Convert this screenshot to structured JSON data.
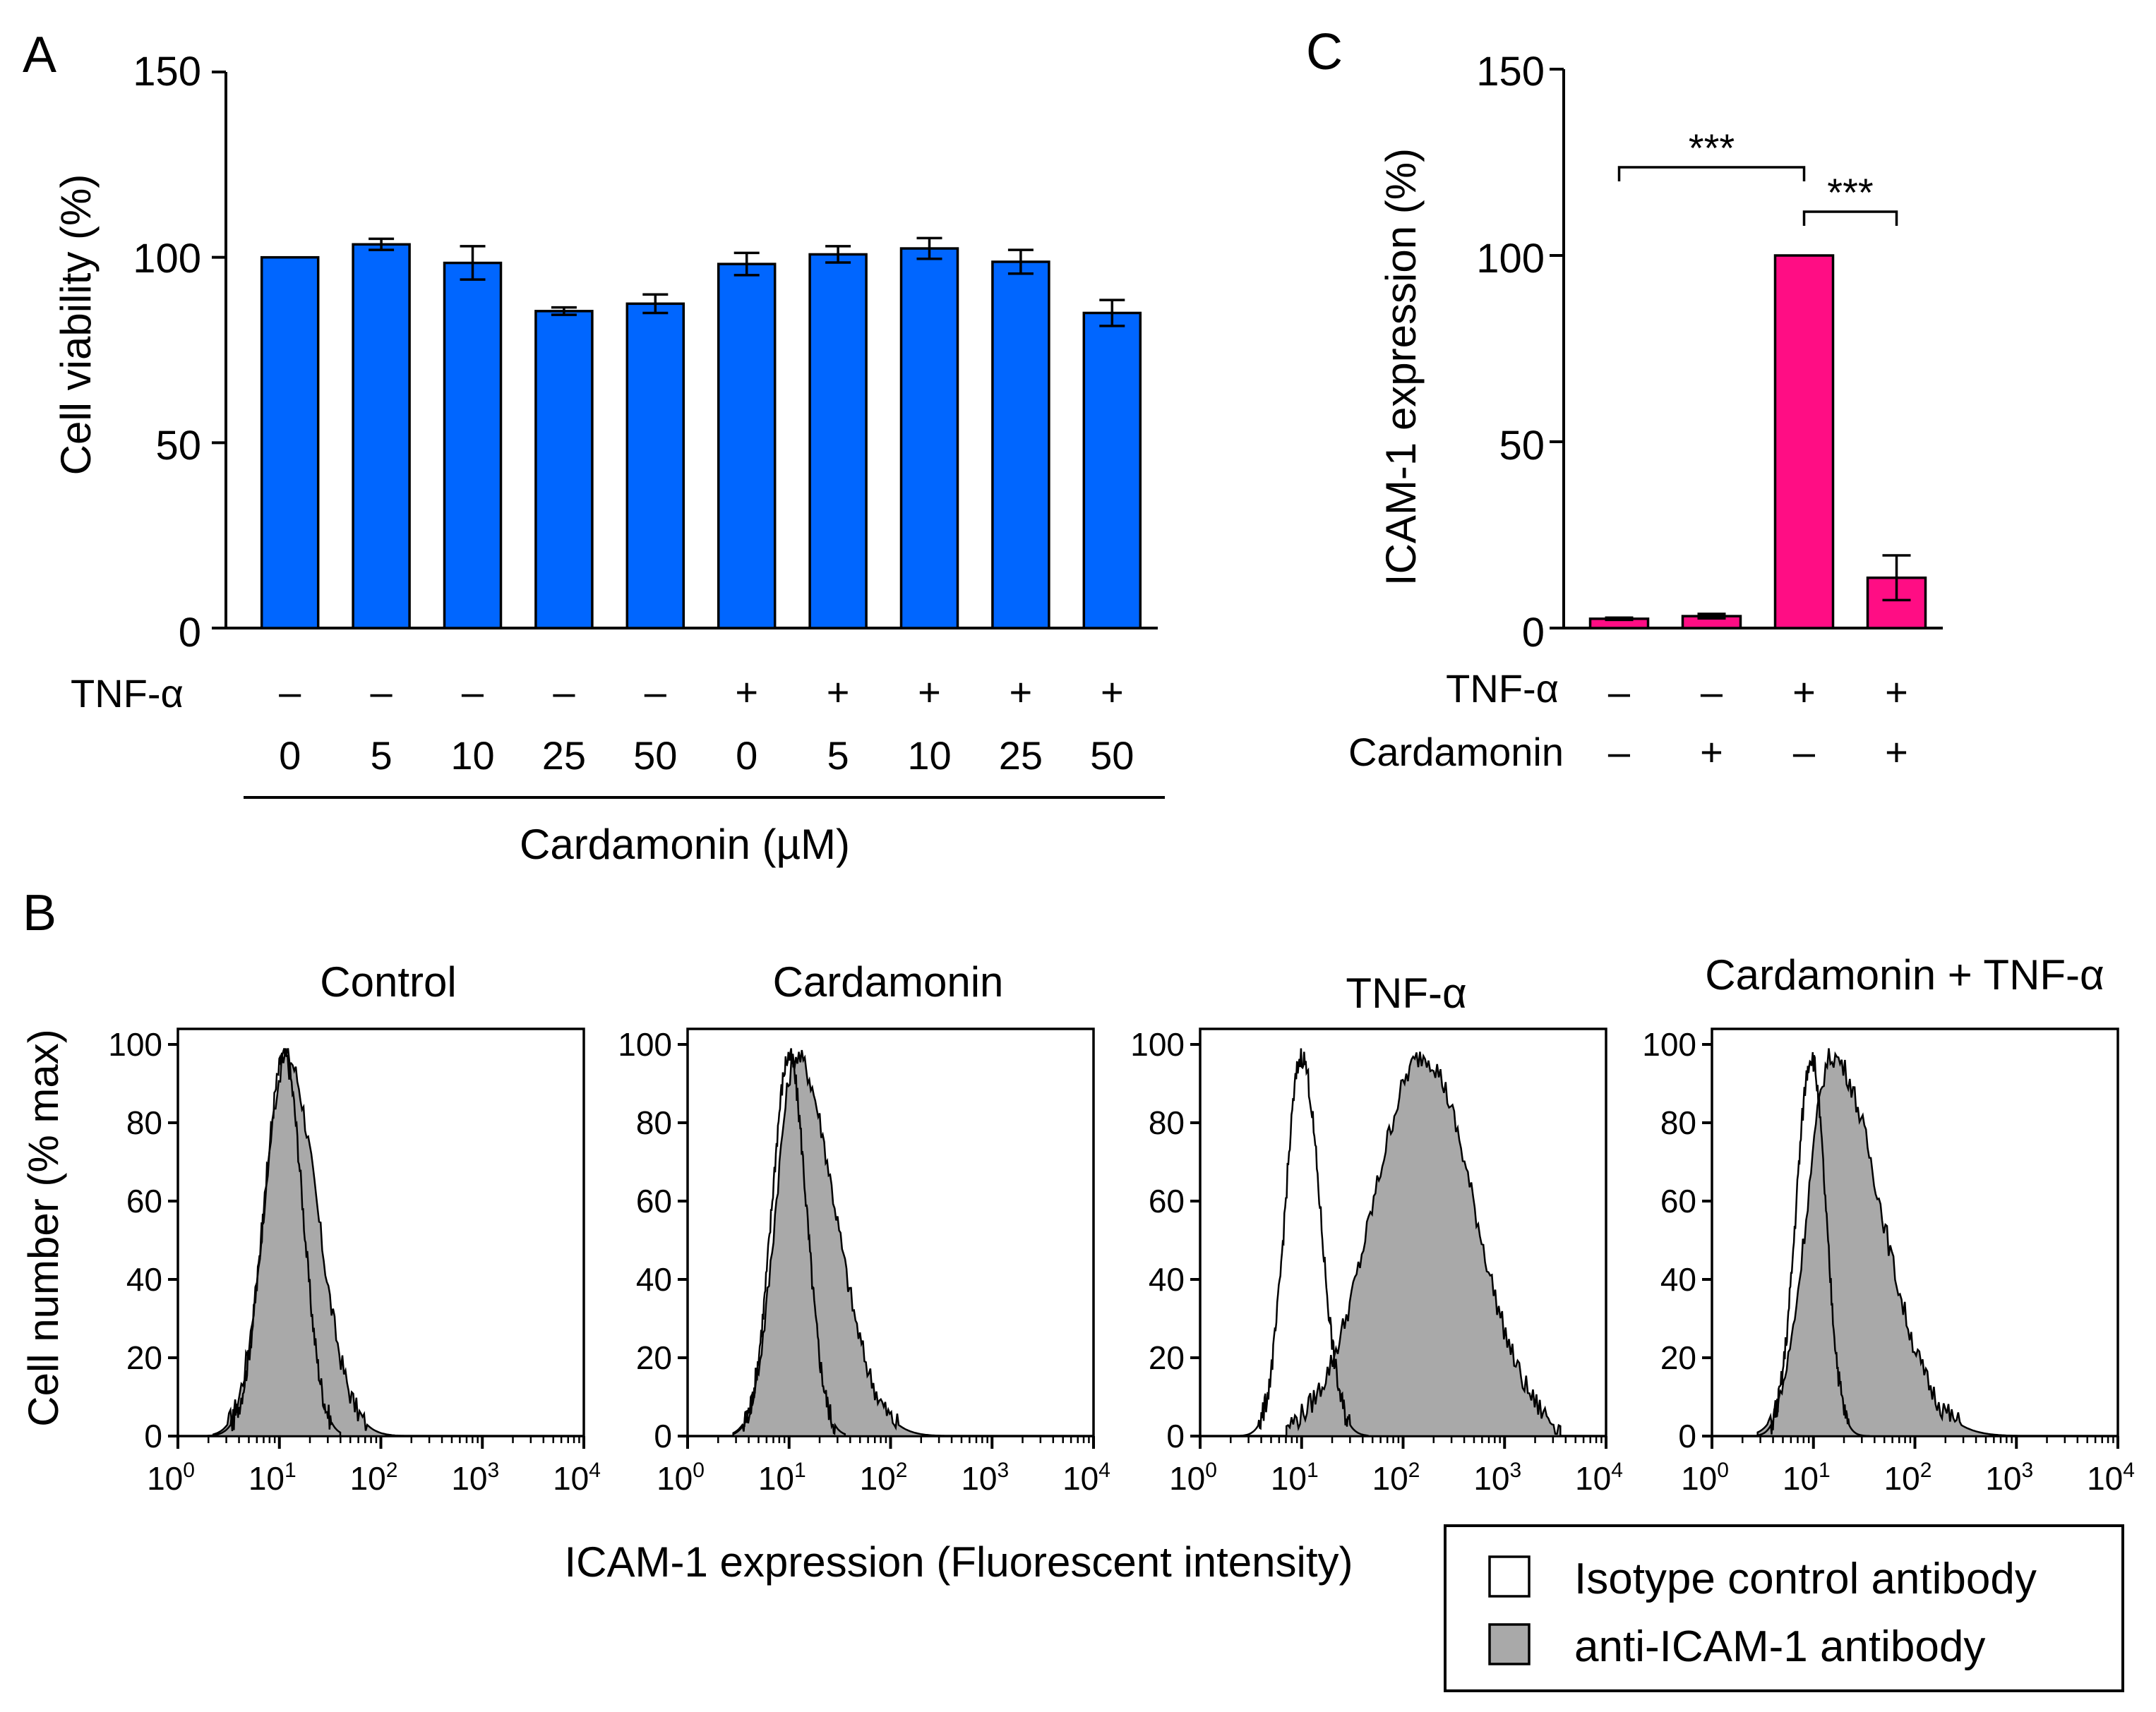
{
  "panels": {
    "a": "A",
    "b": "B",
    "c": "C"
  },
  "colors": {
    "bars_a": "#0066ff",
    "bars_c": "#ff0d84",
    "hist_fill": "#a9a9a9",
    "isotype_fill": "#ffffff"
  },
  "chart_data": [
    {
      "id": "A",
      "type": "bar",
      "ylabel": "Cell viability (%)",
      "ylim": [
        0,
        150
      ],
      "yticks": [
        "0",
        "50",
        "100",
        "150"
      ],
      "row_labels": {
        "tnf": "TNF-α"
      },
      "tnf": [
        "–",
        "–",
        "–",
        "–",
        "–",
        "+",
        "+",
        "+",
        "+",
        "+"
      ],
      "categories": [
        "0",
        "5",
        "10",
        "25",
        "50",
        "0",
        "5",
        "10",
        "25",
        "50"
      ],
      "xlabel": "Cardamonin (µM)",
      "values": [
        100,
        103.5,
        98.5,
        85.5,
        87.5,
        98.2,
        100.8,
        102.4,
        98.8,
        85
      ],
      "errors": [
        0,
        1.5,
        4.5,
        1,
        2.5,
        3,
        2.2,
        2.8,
        3.2,
        3.5
      ]
    },
    {
      "id": "C",
      "type": "bar",
      "ylabel": "ICAM-1 expression (%)",
      "ylim": [
        0,
        150
      ],
      "yticks": [
        "0",
        "50",
        "100",
        "150"
      ],
      "row_labels": {
        "tnf": "TNF-α",
        "card": "Cardamonin"
      },
      "tnf": [
        "–",
        "–",
        "+",
        "+"
      ],
      "cardamonin": [
        "–",
        "+",
        "–",
        "+"
      ],
      "values": [
        2.5,
        3.2,
        100,
        13.5
      ],
      "errors": [
        0.3,
        0.6,
        0,
        6
      ],
      "significance": [
        {
          "from": 0,
          "to": 2,
          "label": "***"
        },
        {
          "from": 2,
          "to": 3,
          "label": "***"
        }
      ]
    },
    {
      "id": "B",
      "type": "area",
      "ylabel": "Cell number (% max)",
      "xlabel": "ICAM-1 expression (Fluorescent intensity)",
      "yticks": [
        "0",
        "20",
        "40",
        "60",
        "80",
        "100"
      ],
      "ylim": [
        0,
        105
      ],
      "xaxis_log_range": [
        0,
        4
      ],
      "xtick_base": "10",
      "xtick_exps": [
        "0",
        "1",
        "2",
        "3",
        "4"
      ],
      "legend": {
        "isotype": "Isotype control antibody",
        "anti": "anti-ICAM-1 antibody"
      },
      "histograms": [
        {
          "title": "Control",
          "isotype": {
            "center": 1.05,
            "sigma_l": 0.2,
            "sigma_r": 0.18,
            "start": 0.3,
            "end": 1.6
          },
          "anti": {
            "center": 1.07,
            "sigma_l": 0.22,
            "sigma_r": 0.3,
            "start": 0.35,
            "end": 2.8
          }
        },
        {
          "title": "Cardamonin",
          "isotype": {
            "center": 1.0,
            "sigma_l": 0.17,
            "sigma_r": 0.17,
            "start": 0.45,
            "end": 1.55
          },
          "anti": {
            "center": 1.07,
            "sigma_l": 0.2,
            "sigma_r": 0.38,
            "start": 0.45,
            "end": 2.8
          }
        },
        {
          "title": "TNF-α",
          "isotype": {
            "center": 1.0,
            "sigma_l": 0.16,
            "sigma_r": 0.18,
            "start": 0.4,
            "end": 1.65
          },
          "anti": {
            "center": 2.2,
            "sigma_l": 0.5,
            "sigma_r": 0.5,
            "start": 0.85,
            "end": 3.55
          }
        },
        {
          "title": "Cardamonin + TNF-α",
          "isotype": {
            "center": 0.98,
            "sigma_l": 0.15,
            "sigma_r": 0.14,
            "start": 0.45,
            "end": 1.55
          },
          "anti": {
            "center": 1.18,
            "sigma_l": 0.24,
            "sigma_r": 0.48,
            "start": 0.45,
            "end": 3.0
          }
        }
      ]
    }
  ]
}
